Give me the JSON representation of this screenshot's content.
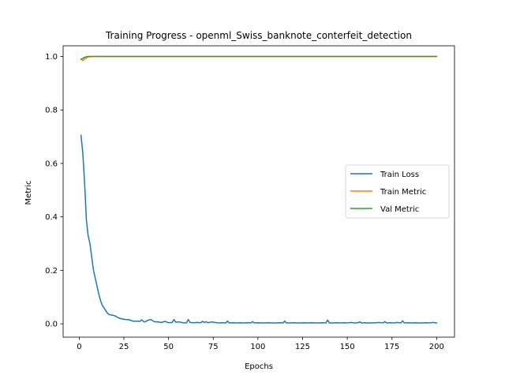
{
  "chart_data": {
    "type": "line",
    "title": "Training Progress - openml_Swiss_banknote_conterfeit_detection",
    "xlabel": "Epochs",
    "ylabel": "Metric",
    "xlim": [
      -9,
      210
    ],
    "ylim": [
      -0.05,
      1.04
    ],
    "xticks": [
      0,
      25,
      50,
      75,
      100,
      125,
      150,
      175,
      200
    ],
    "yticks": [
      0.0,
      0.2,
      0.4,
      0.6,
      0.8,
      1.0
    ],
    "xtick_labels": [
      "0",
      "25",
      "50",
      "75",
      "100",
      "125",
      "150",
      "175",
      "200"
    ],
    "ytick_labels": [
      "0.0",
      "0.2",
      "0.4",
      "0.6",
      "0.8",
      "1.0"
    ],
    "grid": false,
    "legend_position": "center-right",
    "series": [
      {
        "name": "Train Loss",
        "color": "#1f77b4",
        "x": [
          1,
          2,
          3,
          4,
          5,
          6,
          7,
          8,
          9,
          10,
          11,
          12,
          13,
          14,
          15,
          16,
          17,
          18,
          20,
          22,
          24,
          26,
          28,
          30,
          32,
          34,
          35,
          36,
          37,
          38,
          40,
          42,
          44,
          46,
          48,
          50,
          52,
          53,
          54,
          56,
          58,
          60,
          61,
          62,
          64,
          66,
          68,
          69,
          70,
          71,
          72,
          74,
          76,
          78,
          80,
          82,
          83,
          84,
          86,
          88,
          90,
          92,
          94,
          96,
          97,
          98,
          100,
          102,
          104,
          106,
          108,
          110,
          112,
          114,
          115,
          116,
          118,
          120,
          122,
          124,
          126,
          128,
          130,
          132,
          134,
          136,
          138,
          139,
          140,
          142,
          144,
          146,
          148,
          150,
          152,
          154,
          156,
          157,
          158,
          160,
          162,
          164,
          166,
          168,
          170,
          171,
          172,
          174,
          176,
          178,
          180,
          181,
          182,
          184,
          186,
          188,
          190,
          192,
          194,
          196,
          198,
          200
        ],
        "values": [
          0.705,
          0.64,
          0.53,
          0.39,
          0.33,
          0.3,
          0.25,
          0.2,
          0.17,
          0.14,
          0.11,
          0.085,
          0.068,
          0.058,
          0.048,
          0.038,
          0.034,
          0.033,
          0.03,
          0.022,
          0.018,
          0.016,
          0.015,
          0.01,
          0.01,
          0.009,
          0.015,
          0.008,
          0.007,
          0.012,
          0.016,
          0.008,
          0.007,
          0.005,
          0.009,
          0.004,
          0.005,
          0.016,
          0.006,
          0.007,
          0.004,
          0.003,
          0.016,
          0.005,
          0.004,
          0.005,
          0.004,
          0.009,
          0.005,
          0.008,
          0.004,
          0.007,
          0.005,
          0.003,
          0.004,
          0.003,
          0.01,
          0.003,
          0.004,
          0.003,
          0.004,
          0.003,
          0.004,
          0.003,
          0.008,
          0.003,
          0.004,
          0.003,
          0.003,
          0.004,
          0.003,
          0.003,
          0.004,
          0.003,
          0.01,
          0.003,
          0.003,
          0.004,
          0.003,
          0.003,
          0.004,
          0.003,
          0.004,
          0.003,
          0.003,
          0.004,
          0.003,
          0.014,
          0.003,
          0.003,
          0.004,
          0.003,
          0.004,
          0.003,
          0.005,
          0.003,
          0.004,
          0.007,
          0.003,
          0.004,
          0.003,
          0.003,
          0.004,
          0.005,
          0.003,
          0.008,
          0.003,
          0.004,
          0.003,
          0.005,
          0.003,
          0.011,
          0.003,
          0.004,
          0.003,
          0.004,
          0.003,
          0.003,
          0.004,
          0.003,
          0.005,
          0.003
        ]
      },
      {
        "name": "Train Metric",
        "color": "#ff7f0e",
        "x": [
          1,
          2,
          3,
          4,
          5,
          6,
          8,
          10,
          20,
          50,
          100,
          150,
          200
        ],
        "values": [
          0.99,
          0.985,
          0.991,
          0.995,
          0.998,
          0.999,
          1.0,
          1.0,
          1.0,
          1.0,
          1.0,
          1.0,
          1.0
        ]
      },
      {
        "name": "Val Metric",
        "color": "#2ca02c",
        "x": [
          1,
          2,
          3,
          4,
          5,
          6,
          8,
          10,
          20,
          50,
          100,
          150,
          200
        ],
        "values": [
          0.99,
          0.993,
          0.997,
          0.999,
          1.0,
          1.0,
          1.0,
          1.0,
          1.0,
          1.0,
          1.0,
          1.0,
          1.0
        ]
      }
    ]
  }
}
